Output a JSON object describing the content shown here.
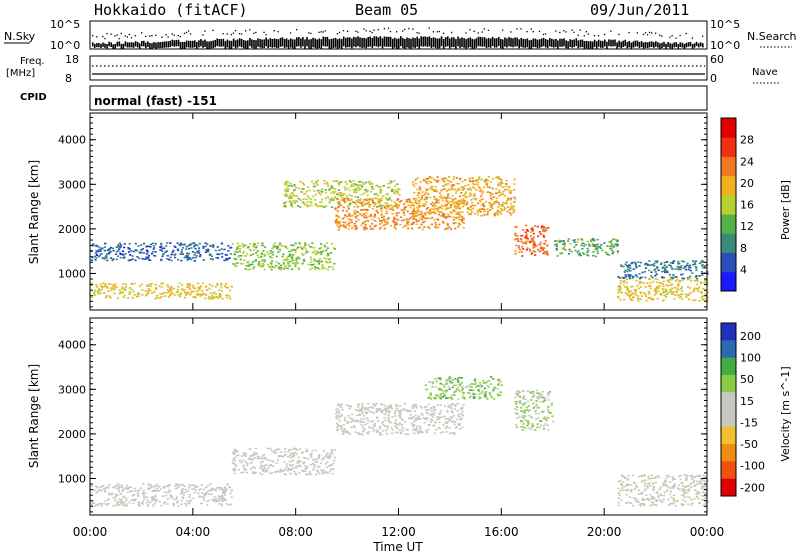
{
  "header": {
    "station": "Hokkaido (fitACF)",
    "beam": "Beam 05",
    "date": "09/Jun/2011",
    "mode": "normal (fast) -151"
  },
  "top_panels": {
    "nsky_label": "N.Sky",
    "nsearch_label": "N.Search",
    "nsky_ticks": [
      "10^5",
      "10^0"
    ],
    "nsearch_ticks": [
      "10^5",
      "10^0"
    ],
    "freq_label_1": "Freq.",
    "freq_label_2": "[MHz]",
    "freq_ticks": [
      "18",
      "8"
    ],
    "nave_label": "Nave",
    "nave_ticks": [
      "60",
      "0"
    ],
    "cpid_label": "CPID"
  },
  "colors": {
    "power_scale": [
      "#1a1aff",
      "#2a4fb8",
      "#3a8a7a",
      "#55b04a",
      "#b8d030",
      "#f0b020",
      "#f07820",
      "#f03010",
      "#e00000"
    ],
    "velocity_scale": [
      "#e00000",
      "#f05010",
      "#f08c10",
      "#f0c030",
      "#c8c8c0",
      "#c8c8c0",
      "#88cc44",
      "#44aa44",
      "#2a6ab0",
      "#2030c0"
    ]
  },
  "chart_data": [
    {
      "type": "heatmap",
      "panel": "power",
      "xlabel": "",
      "ylabel": "Slant Range [km]",
      "x_ticks": [
        "00:00",
        "04:00",
        "08:00",
        "12:00",
        "16:00",
        "20:00",
        "00:00"
      ],
      "xlim": [
        0,
        24
      ],
      "y_ticks": [
        1000,
        2000,
        3000,
        4000
      ],
      "ylim": [
        180,
        4600
      ],
      "colorbar": {
        "label": "Power [dB]",
        "ticks": [
          4,
          8,
          12,
          16,
          20,
          24,
          28
        ],
        "range": [
          0,
          32
        ]
      },
      "regions": [
        {
          "t0": 0.0,
          "t1": 5.5,
          "r0": 450,
          "r1": 800,
          "value": 18
        },
        {
          "t0": 0.0,
          "t1": 5.5,
          "r0": 1300,
          "r1": 1700,
          "value": 6
        },
        {
          "t0": 5.5,
          "t1": 9.5,
          "r0": 1100,
          "r1": 1700,
          "value": 14
        },
        {
          "t0": 7.5,
          "t1": 12.0,
          "r0": 2500,
          "r1": 3100,
          "value": 16
        },
        {
          "t0": 9.5,
          "t1": 14.5,
          "r0": 2000,
          "r1": 2700,
          "value": 22
        },
        {
          "t0": 12.5,
          "t1": 16.5,
          "r0": 2300,
          "r1": 3200,
          "value": 20
        },
        {
          "t0": 16.5,
          "t1": 17.8,
          "r0": 1400,
          "r1": 2100,
          "value": 24
        },
        {
          "t0": 18.0,
          "t1": 20.5,
          "r0": 1400,
          "r1": 1800,
          "value": 12
        },
        {
          "t0": 20.5,
          "t1": 24.0,
          "r0": 400,
          "r1": 900,
          "value": 18
        },
        {
          "t0": 20.5,
          "t1": 24.0,
          "r0": 900,
          "r1": 1300,
          "value": 8
        }
      ]
    },
    {
      "type": "heatmap",
      "panel": "velocity",
      "xlabel": "Time UT",
      "ylabel": "Slant Range [km]",
      "x_ticks": [
        "00:00",
        "04:00",
        "08:00",
        "12:00",
        "16:00",
        "20:00",
        "00:00"
      ],
      "xlim": [
        0,
        24
      ],
      "y_ticks": [
        1000,
        2000,
        3000,
        4000
      ],
      "ylim": [
        180,
        4600
      ],
      "colorbar": {
        "label": "Velocity [m s^-1]",
        "ticks": [
          200,
          100,
          50,
          15,
          -15,
          -50,
          -100,
          -200
        ],
        "range": [
          -250,
          250
        ]
      },
      "regions": [
        {
          "t0": 0.0,
          "t1": 5.5,
          "r0": 400,
          "r1": 900,
          "value": 0
        },
        {
          "t0": 5.5,
          "t1": 9.5,
          "r0": 1100,
          "r1": 1700,
          "value": 0
        },
        {
          "t0": 9.5,
          "t1": 14.5,
          "r0": 2000,
          "r1": 2700,
          "value": 0
        },
        {
          "t0": 13.0,
          "t1": 16.0,
          "r0": 2800,
          "r1": 3300,
          "value": 70
        },
        {
          "t0": 16.5,
          "t1": 18.0,
          "r0": 2100,
          "r1": 3000,
          "value": 40
        },
        {
          "t0": 20.5,
          "t1": 24.0,
          "r0": 400,
          "r1": 1100,
          "value": -10
        }
      ]
    }
  ]
}
